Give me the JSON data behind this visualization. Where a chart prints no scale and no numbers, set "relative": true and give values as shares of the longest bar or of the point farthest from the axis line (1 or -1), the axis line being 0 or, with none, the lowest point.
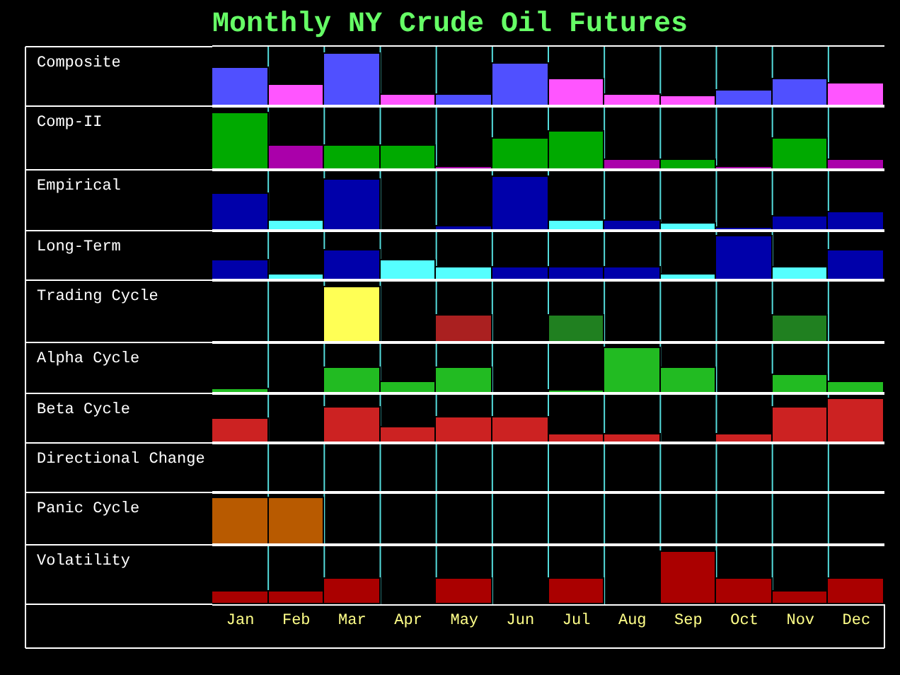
{
  "chart_data": [
    {
      "type": "bar",
      "title": "Monthly NY Crude Oil Futures",
      "ylabel": "Composite",
      "relative": true,
      "tick_labels": false,
      "grid": "x",
      "categories": [
        null,
        null,
        null,
        null,
        null,
        null,
        null,
        null,
        null,
        null,
        null,
        null
      ],
      "values": [
        0.72,
        0.39,
        1,
        0.22,
        0.21,
        0.8,
        0.52,
        0.22,
        0.19,
        0.3,
        0.52,
        0.44
      ],
      "colors": [
        "#5050ff",
        "#ff55ff",
        "#5050ff",
        "#ff55ff",
        "#5050ff",
        "#5050ff",
        "#ff55ff",
        "#ff55ff",
        "#ff55ff",
        "#5050ff",
        "#5050ff",
        "#ff55ff"
      ]
    },
    {
      "type": "bar",
      "ylabel": "Comp-II",
      "relative": true,
      "tick_labels": false,
      "grid": "x",
      "categories": [
        null,
        null,
        null,
        null,
        null,
        null,
        null,
        null,
        null,
        null,
        null,
        null
      ],
      "values": [
        1,
        0.43,
        0.43,
        0.43,
        0.06,
        0.56,
        0.66,
        0.18,
        0.18,
        0.06,
        0.56,
        0.18
      ],
      "colors": [
        "#00aa00",
        "#aa00aa",
        "#00aa00",
        "#00aa00",
        "#aa00aa",
        "#00aa00",
        "#00aa00",
        "#aa00aa",
        "#00aa00",
        "#aa00aa",
        "#00aa00",
        "#aa00aa"
      ]
    },
    {
      "type": "bar",
      "ylabel": "Empirical",
      "relative": true,
      "tick_labels": false,
      "grid": "x",
      "categories": [
        null,
        null,
        null,
        null,
        null,
        null,
        null,
        null,
        null,
        null,
        null,
        null
      ],
      "values": [
        0.67,
        0.19,
        0.94,
        null,
        0.07,
        1,
        0.19,
        0.19,
        0.12,
        0.05,
        0.26,
        0.33
      ],
      "colors": [
        "#0000aa",
        "#55ffff",
        "#0000aa",
        null,
        "#0000aa",
        "#0000aa",
        "#55ffff",
        "#0000aa",
        "#55ffff",
        "#0000aa",
        "#0000aa",
        "#0000aa"
      ]
    },
    {
      "type": "bar",
      "ylabel": "Long-Term",
      "relative": true,
      "tick_labels": false,
      "grid": "x",
      "categories": [
        null,
        null,
        null,
        null,
        null,
        null,
        null,
        null,
        null,
        null,
        null,
        null
      ],
      "values": [
        0.46,
        0.12,
        0.66,
        0.46,
        0.28,
        0.28,
        0.28,
        0.28,
        0.12,
        1,
        0.28,
        0.66
      ],
      "colors": [
        "#0000aa",
        "#55ffff",
        "#0000aa",
        "#55ffff",
        "#55ffff",
        "#0000aa",
        "#0000aa",
        "#0000aa",
        "#55ffff",
        "#0000aa",
        "#55ffff",
        "#0000aa"
      ]
    },
    {
      "type": "bar",
      "ylabel": "Trading Cycle",
      "relative": true,
      "tick_labels": false,
      "grid": "x",
      "categories": [
        null,
        null,
        null,
        null,
        null,
        null,
        null,
        null,
        null,
        null,
        null,
        null
      ],
      "values": [
        null,
        null,
        1,
        null,
        0.49,
        null,
        0.49,
        null,
        null,
        null,
        0.49,
        null
      ],
      "colors": [
        null,
        null,
        "#ffff55",
        null,
        "#aa2020",
        null,
        "#208020",
        null,
        null,
        null,
        "#208020",
        null
      ]
    },
    {
      "type": "bar",
      "ylabel": "Alpha Cycle",
      "relative": true,
      "tick_labels": false,
      "grid": "x",
      "categories": [
        null,
        null,
        null,
        null,
        null,
        null,
        null,
        null,
        null,
        null,
        null,
        null
      ],
      "values": [
        0.09,
        null,
        0.56,
        0.24,
        0.56,
        null,
        0.07,
        1,
        0.56,
        null,
        0.41,
        0.24
      ],
      "color": "#22bb22"
    },
    {
      "type": "bar",
      "ylabel": "Beta Cycle",
      "relative": true,
      "tick_labels": false,
      "grid": "x",
      "categories": [
        null,
        null,
        null,
        null,
        null,
        null,
        null,
        null,
        null,
        null,
        null,
        null
      ],
      "values": [
        0.55,
        null,
        0.79,
        0.35,
        0.58,
        0.58,
        0.18,
        0.18,
        null,
        0.18,
        0.79,
        1
      ],
      "color": "#cc2222"
    },
    {
      "type": "other",
      "ylabel": "Directional Change"
    },
    {
      "type": "bar",
      "ylabel": "Panic Cycle",
      "relative": true,
      "tick_labels": false,
      "grid": "x",
      "categories": [
        null,
        null,
        null,
        null,
        null,
        null,
        null,
        null,
        null,
        null,
        null,
        null
      ],
      "values": [
        1,
        1,
        null,
        null,
        null,
        null,
        null,
        null,
        null,
        null,
        null,
        null
      ],
      "color": "#b85a00"
    },
    {
      "type": "bar",
      "ylabel": "Volatility",
      "relative": true,
      "tick_labels": "x",
      "grid": "x",
      "categories": [
        "Jan",
        "Feb",
        "Mar",
        "Apr",
        "May",
        "Jun",
        "Jul",
        "Aug",
        "Sep",
        "Oct",
        "Nov",
        "Dec"
      ],
      "values": [
        0.23,
        0.23,
        0.47,
        null,
        0.47,
        null,
        0.47,
        null,
        1,
        0.47,
        0.23,
        0.47
      ],
      "color": "#aa0000"
    }
  ]
}
